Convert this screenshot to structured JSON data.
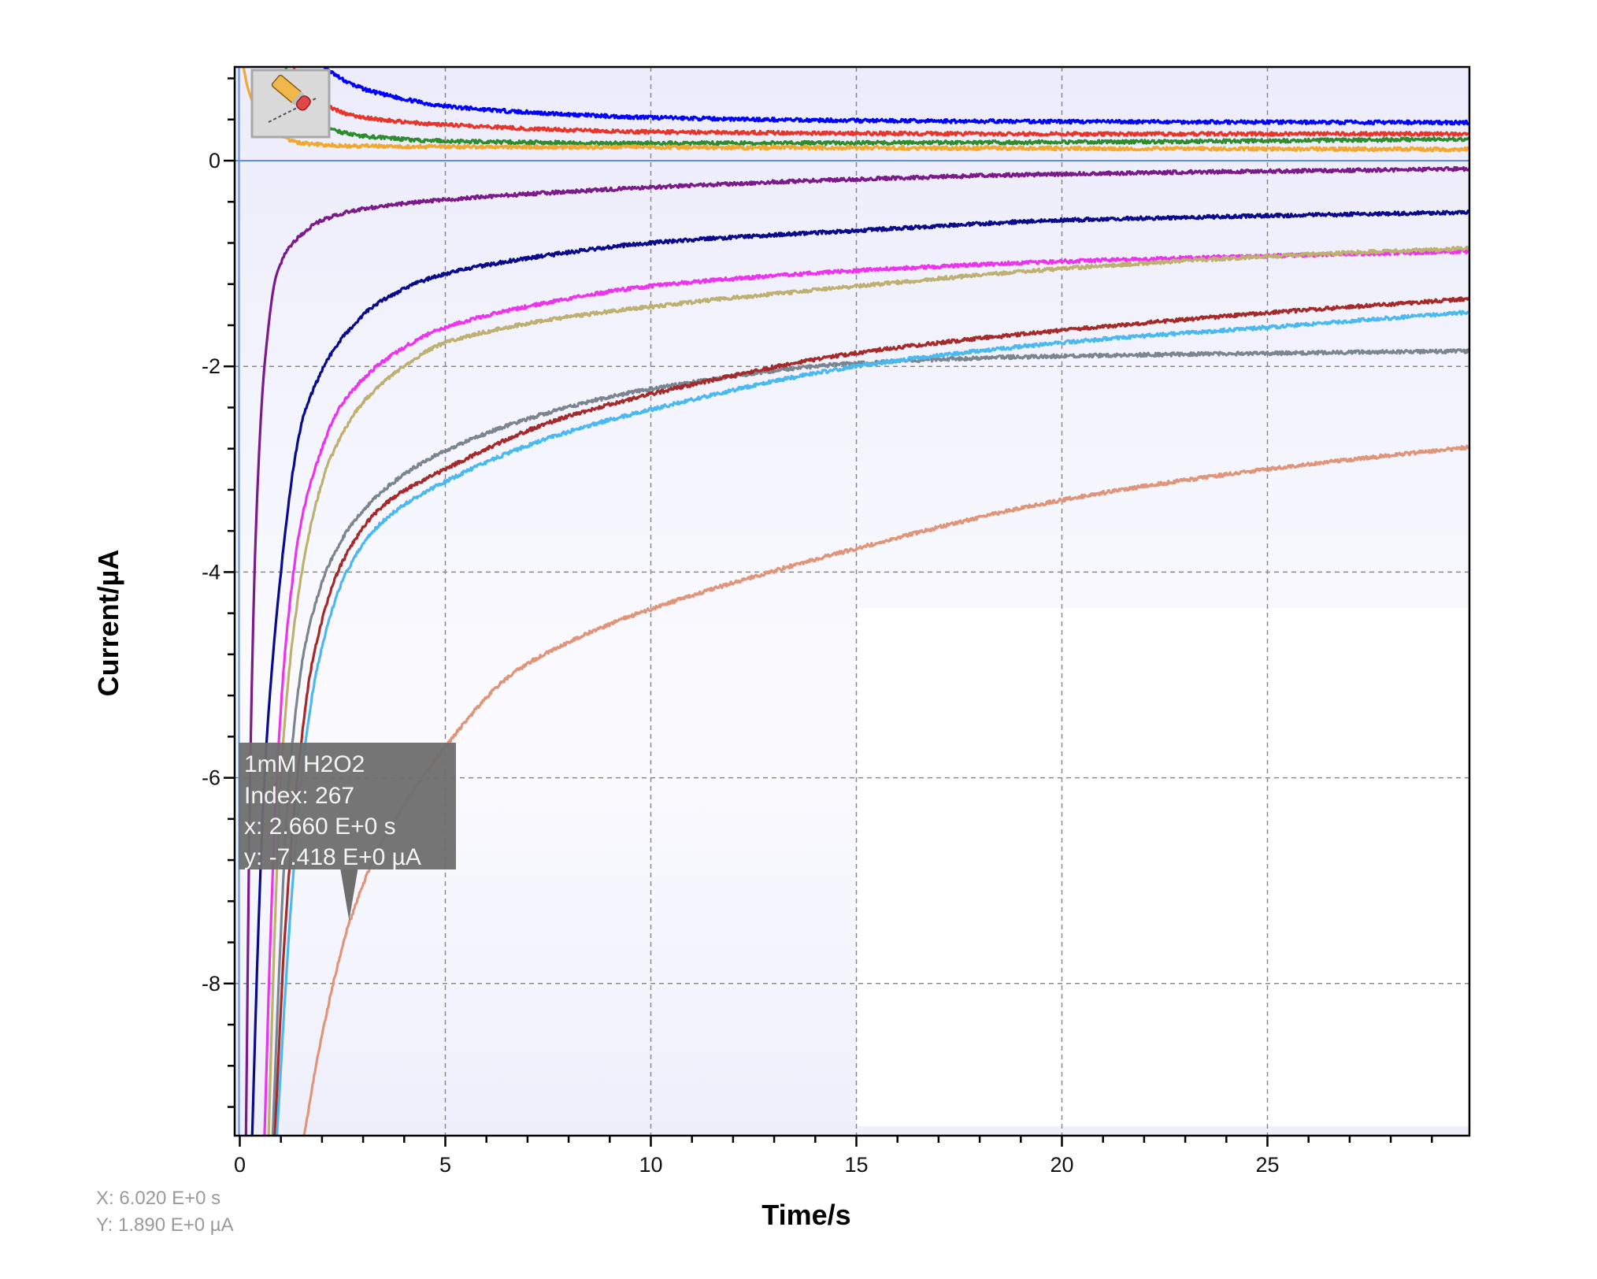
{
  "chart_data": {
    "type": "line",
    "title": "",
    "xlabel": "Time/s",
    "ylabel": "Current/µA",
    "xlim": [
      -0.12,
      29.9
    ],
    "ylim": [
      -9.48,
      0.91
    ],
    "grid": true,
    "legend": "none",
    "x_ticks": [
      "0",
      "5",
      "10",
      "15",
      "20",
      "25"
    ],
    "y_ticks": [
      "0",
      "-2",
      "-4",
      "-6",
      "-8"
    ],
    "series": [
      {
        "name": "",
        "color": "#0000ff",
        "points": [
          [
            1.5,
            1.3
          ],
          [
            2.1,
            0.9
          ],
          [
            3,
            0.7
          ],
          [
            4,
            0.6
          ],
          [
            5,
            0.53
          ],
          [
            7.5,
            0.46
          ],
          [
            10,
            0.42
          ],
          [
            15,
            0.39
          ],
          [
            20,
            0.38
          ],
          [
            30,
            0.37
          ]
        ]
      },
      {
        "name": "",
        "color": "#e8352a",
        "points": [
          [
            1.2,
            1.0
          ],
          [
            1.6,
            0.7
          ],
          [
            2.3,
            0.5
          ],
          [
            3,
            0.42
          ],
          [
            5,
            0.35
          ],
          [
            10,
            0.28
          ],
          [
            20,
            0.26
          ],
          [
            30,
            0.26
          ]
        ]
      },
      {
        "name": "",
        "color": "#2e8b2e",
        "points": [
          [
            1.0,
            1.0
          ],
          [
            1.5,
            0.6
          ],
          [
            2.3,
            0.3
          ],
          [
            3,
            0.24
          ],
          [
            5,
            0.19
          ],
          [
            10,
            0.17
          ],
          [
            20,
            0.18
          ],
          [
            30,
            0.21
          ]
        ]
      },
      {
        "name": "",
        "color": "#f0a830",
        "points": [
          [
            0.05,
            1.0
          ],
          [
            0.2,
            0.7
          ],
          [
            0.4,
            0.5
          ],
          [
            1,
            0.25
          ],
          [
            1.5,
            0.17
          ],
          [
            3,
            0.14
          ],
          [
            10,
            0.13
          ],
          [
            30,
            0.11
          ]
        ]
      },
      {
        "name": "",
        "color": "#7b1a8a",
        "points": [
          [
            0.15,
            -9.5
          ],
          [
            0.25,
            -6
          ],
          [
            0.4,
            -3.5
          ],
          [
            0.6,
            -2
          ],
          [
            0.9,
            -1.1
          ],
          [
            1.3,
            -0.8
          ],
          [
            2,
            -0.58
          ],
          [
            3,
            -0.47
          ],
          [
            5,
            -0.38
          ],
          [
            10,
            -0.26
          ],
          [
            15,
            -0.18
          ],
          [
            20,
            -0.13
          ],
          [
            30,
            -0.08
          ]
        ]
      },
      {
        "name": "",
        "color": "#0a0a8c",
        "points": [
          [
            0.3,
            -9.5
          ],
          [
            0.45,
            -7.5
          ],
          [
            0.6,
            -6
          ],
          [
            0.77,
            -5
          ],
          [
            1,
            -4
          ],
          [
            1.3,
            -3
          ],
          [
            1.6,
            -2.42
          ],
          [
            2.5,
            -1.72
          ],
          [
            3.5,
            -1.35
          ],
          [
            5,
            -1.1
          ],
          [
            7.5,
            -0.92
          ],
          [
            10,
            -0.8
          ],
          [
            15,
            -0.68
          ],
          [
            20,
            -0.58
          ],
          [
            30,
            -0.5
          ]
        ]
      },
      {
        "name": "",
        "color": "#ee33ee",
        "points": [
          [
            0.6,
            -9.5
          ],
          [
            0.75,
            -7.5
          ],
          [
            0.9,
            -6
          ],
          [
            1.14,
            -4.6
          ],
          [
            1.5,
            -3.5
          ],
          [
            2,
            -2.8
          ],
          [
            2.4,
            -2.42
          ],
          [
            3.5,
            -1.95
          ],
          [
            5,
            -1.62
          ],
          [
            7.5,
            -1.38
          ],
          [
            10,
            -1.22
          ],
          [
            15,
            -1.07
          ],
          [
            20,
            -0.98
          ],
          [
            30,
            -0.88
          ]
        ]
      },
      {
        "name": "",
        "color": "#bdb070",
        "points": [
          [
            0.7,
            -9.5
          ],
          [
            0.85,
            -7.5
          ],
          [
            1.0,
            -6
          ],
          [
            1.3,
            -4.6
          ],
          [
            1.7,
            -3.6
          ],
          [
            2.2,
            -2.9
          ],
          [
            3,
            -2.35
          ],
          [
            4,
            -2.0
          ],
          [
            5,
            -1.77
          ],
          [
            7.5,
            -1.55
          ],
          [
            10,
            -1.42
          ],
          [
            15,
            -1.22
          ],
          [
            20,
            -1.05
          ],
          [
            25,
            -0.93
          ],
          [
            30,
            -0.85
          ]
        ]
      },
      {
        "name": "",
        "color": "#7a8590",
        "points": [
          [
            0.8,
            -9.5
          ],
          [
            1.0,
            -7.5
          ],
          [
            1.2,
            -6
          ],
          [
            1.6,
            -4.7
          ],
          [
            2.2,
            -3.9
          ],
          [
            3,
            -3.4
          ],
          [
            4,
            -3.05
          ],
          [
            5,
            -2.82
          ],
          [
            7.5,
            -2.45
          ],
          [
            10,
            -2.22
          ],
          [
            15,
            -1.97
          ],
          [
            20,
            -1.9
          ],
          [
            30,
            -1.85
          ]
        ]
      },
      {
        "name": "",
        "color": "#a52a2a",
        "points": [
          [
            0.85,
            -9.5
          ],
          [
            1.1,
            -7.5
          ],
          [
            1.4,
            -6
          ],
          [
            1.8,
            -4.8
          ],
          [
            2.5,
            -3.9
          ],
          [
            3.5,
            -3.35
          ],
          [
            5,
            -3.0
          ],
          [
            7.5,
            -2.55
          ],
          [
            10,
            -2.27
          ],
          [
            15,
            -1.87
          ],
          [
            20,
            -1.65
          ],
          [
            25,
            -1.48
          ],
          [
            30,
            -1.34
          ]
        ]
      },
      {
        "name": "",
        "color": "#4bb8f0",
        "points": [
          [
            0.9,
            -9.5
          ],
          [
            1.2,
            -7.5
          ],
          [
            1.5,
            -6
          ],
          [
            1.9,
            -4.9
          ],
          [
            2.6,
            -4.0
          ],
          [
            3.5,
            -3.5
          ],
          [
            5,
            -3.12
          ],
          [
            7.5,
            -2.7
          ],
          [
            10,
            -2.42
          ],
          [
            15,
            -2.0
          ],
          [
            20,
            -1.77
          ],
          [
            25,
            -1.62
          ],
          [
            30,
            -1.47
          ]
        ]
      },
      {
        "name": "1mM H2O2",
        "color": "#e0957a",
        "points": [
          [
            1.55,
            -9.5
          ],
          [
            2,
            -8.5
          ],
          [
            2.66,
            -7.418
          ],
          [
            3.5,
            -6.6
          ],
          [
            5,
            -5.7
          ],
          [
            6.6,
            -5.0
          ],
          [
            8,
            -4.68
          ],
          [
            10,
            -4.36
          ],
          [
            15,
            -3.77
          ],
          [
            20,
            -3.3
          ],
          [
            25,
            -3.0
          ],
          [
            30,
            -2.78
          ]
        ]
      }
    ],
    "tooltip": {
      "series": "1mM H2O2",
      "index_line": "Index: 267",
      "x_line": "x: 2.660 E+0 s",
      "y_line": "y: -7.418 E+0 µA",
      "x": 2.66,
      "y": -7.418
    },
    "crosshair": {
      "x": 0,
      "y": 0,
      "color": "#5b8ee8"
    }
  },
  "cursor_readout": {
    "x": "X: 6.020 E+0 s",
    "y": "Y: 1.890 E+0 µA"
  },
  "toolbar": {
    "icon": "eraser-icon"
  }
}
